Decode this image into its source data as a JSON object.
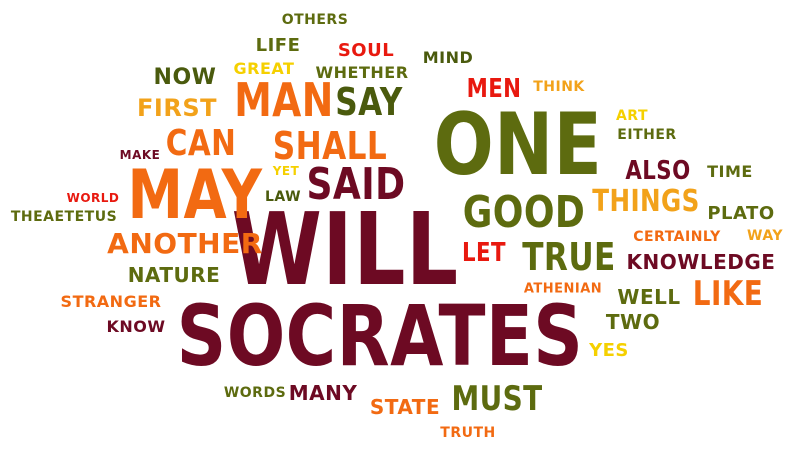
{
  "palette": {
    "maroon": "#6d0a23",
    "red": "#e8190f",
    "orange": "#f26a12",
    "amber": "#f2a21a",
    "yellow": "#f5d000",
    "olive": "#5d6b0f",
    "darkolive": "#4a5a0d"
  },
  "words": [
    {
      "text": "SOCRATES",
      "color": "maroon"
    },
    {
      "text": "WILL",
      "color": "maroon"
    },
    {
      "text": "ONE",
      "color": "olive"
    },
    {
      "text": "MAY",
      "color": "orange"
    },
    {
      "text": "SAID",
      "color": "maroon"
    },
    {
      "text": "GOOD",
      "color": "olive"
    },
    {
      "text": "MAN",
      "color": "orange"
    },
    {
      "text": "SAY",
      "color": "darkolive"
    },
    {
      "text": "SHALL",
      "color": "orange"
    },
    {
      "text": "CAN",
      "color": "orange"
    },
    {
      "text": "ANOTHER",
      "color": "orange"
    },
    {
      "text": "TRUE",
      "color": "olive"
    },
    {
      "text": "THINGS",
      "color": "amber"
    },
    {
      "text": "MUST",
      "color": "olive"
    },
    {
      "text": "LIKE",
      "color": "orange"
    },
    {
      "text": "MEN",
      "color": "red"
    },
    {
      "text": "FIRST",
      "color": "amber"
    },
    {
      "text": "NOW",
      "color": "darkolive"
    },
    {
      "text": "ALSO",
      "color": "maroon"
    },
    {
      "text": "LET",
      "color": "red"
    },
    {
      "text": "KNOWLEDGE",
      "color": "maroon"
    },
    {
      "text": "NATURE",
      "color": "olive"
    },
    {
      "text": "STATE",
      "color": "orange"
    },
    {
      "text": "GREAT",
      "color": "yellow"
    },
    {
      "text": "WHETHER",
      "color": "olive"
    },
    {
      "text": "LIFE",
      "color": "olive"
    },
    {
      "text": "SOUL",
      "color": "red"
    },
    {
      "text": "MIND",
      "color": "darkolive"
    },
    {
      "text": "OTHERS",
      "color": "olive"
    },
    {
      "text": "THINK",
      "color": "amber"
    },
    {
      "text": "ART",
      "color": "yellow"
    },
    {
      "text": "EITHER",
      "color": "olive"
    },
    {
      "text": "TIME",
      "color": "olive"
    },
    {
      "text": "PLATO",
      "color": "olive"
    },
    {
      "text": "CERTAINLY",
      "color": "orange"
    },
    {
      "text": "WAY",
      "color": "amber"
    },
    {
      "text": "WELL",
      "color": "olive"
    },
    {
      "text": "TWO",
      "color": "olive"
    },
    {
      "text": "YES",
      "color": "yellow"
    },
    {
      "text": "ATHENIAN",
      "color": "orange"
    },
    {
      "text": "MANY",
      "color": "maroon"
    },
    {
      "text": "WORDS",
      "color": "olive"
    },
    {
      "text": "TRUTH",
      "color": "orange"
    },
    {
      "text": "STRANGER",
      "color": "orange"
    },
    {
      "text": "KNOW",
      "color": "maroon"
    },
    {
      "text": "WORLD",
      "color": "red"
    },
    {
      "text": "THEAETETUS",
      "color": "olive"
    },
    {
      "text": "MAKE",
      "color": "maroon"
    },
    {
      "text": "YET",
      "color": "yellow"
    },
    {
      "text": "LAW",
      "color": "darkolive"
    }
  ]
}
